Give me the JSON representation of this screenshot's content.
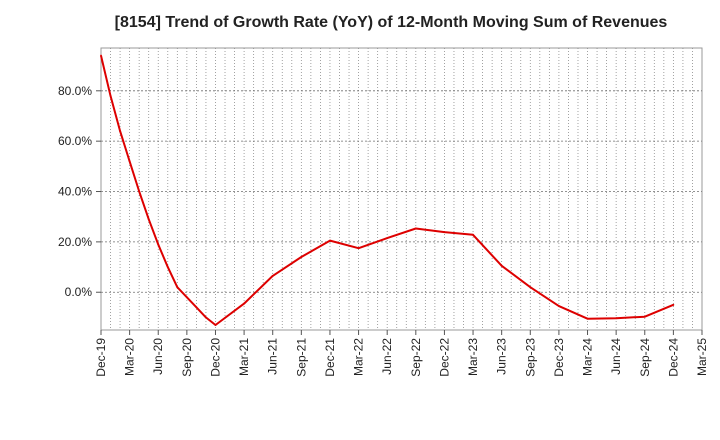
{
  "chart_data": {
    "type": "line",
    "title": "[8154]  Trend of Growth Rate (YoY) of 12-Month Moving Sum of Revenues",
    "xlabel": "",
    "ylabel": "",
    "x_tick_labels": [
      "Dec-19",
      "Mar-20",
      "Jun-20",
      "Sep-20",
      "Dec-20",
      "Mar-21",
      "Jun-21",
      "Sep-21",
      "Dec-21",
      "Mar-22",
      "Jun-22",
      "Sep-22",
      "Dec-22",
      "Mar-23",
      "Jun-23",
      "Sep-23",
      "Dec-23",
      "Mar-24",
      "Jun-24",
      "Sep-24",
      "Dec-24",
      "Mar-25"
    ],
    "y_tick_values": [
      0,
      20,
      40,
      60,
      80
    ],
    "y_tick_labels": [
      "0.0%",
      "20.0%",
      "40.0%",
      "60.0%",
      "80.0%"
    ],
    "ylim": [
      -15,
      97
    ],
    "grid": true,
    "color": "#dd0000",
    "series": [
      {
        "x": [
          "Dec-19",
          "Jan-20",
          "Feb-20",
          "Mar-20",
          "Apr-20",
          "May-20",
          "Jun-20",
          "Jul-20",
          "Aug-20",
          "Sep-20",
          "Oct-20",
          "Nov-20",
          "Dec-20",
          "Mar-21",
          "Jun-21",
          "Sep-21",
          "Dec-21",
          "Mar-22",
          "Jun-22",
          "Sep-22",
          "Dec-22",
          "Mar-23",
          "Jun-23",
          "Sep-23",
          "Dec-23",
          "Mar-24",
          "Jun-24",
          "Sep-24",
          "Dec-24"
        ],
        "values": [
          94,
          78,
          64,
          52,
          40,
          29,
          19,
          10,
          2,
          -2,
          -6,
          -10,
          -13,
          -4.5,
          6.5,
          14,
          20.5,
          17.5,
          21.5,
          25.3,
          23.9,
          22.8,
          10.5,
          2,
          -5.5,
          -10.5,
          -10.3,
          -9.7,
          -5
        ]
      }
    ]
  }
}
